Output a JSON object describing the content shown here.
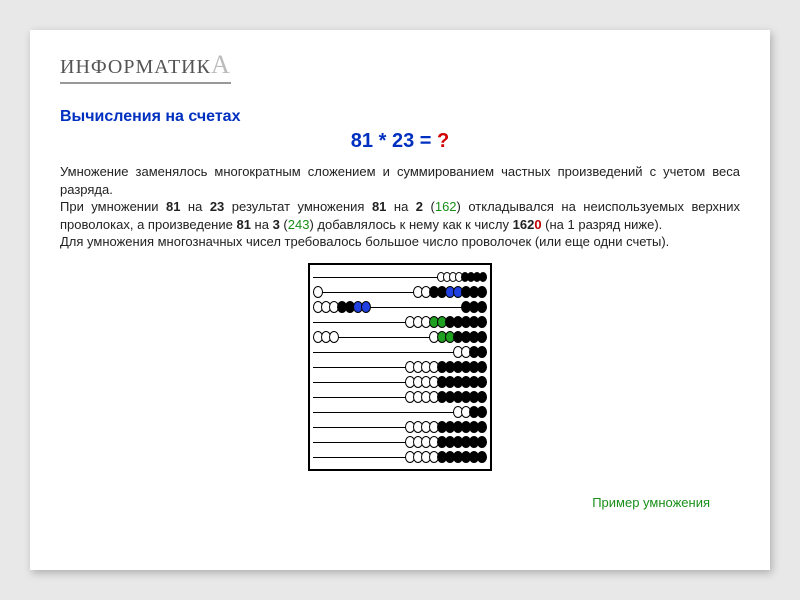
{
  "brand": {
    "text": "ИНФОРМАТИК",
    "suffix": "А"
  },
  "title": "Вычисления на счетах",
  "equation": {
    "lhs": "81 * 23 = ",
    "rhs": "?"
  },
  "paragraphs": {
    "p1": "Умножение заменялось многократным сложением и суммированием частных произведений с учетом веса разряда.",
    "p2a": "При умножении ",
    "p2b": "81",
    "p2c": " на ",
    "p2d": "23",
    "p2e": " результат умножения ",
    "p2f": "81",
    "p2g": " на ",
    "p2h": "2",
    "p2i": " (",
    "p2j": "162",
    "p2k": ") откладывался на неиспользуемых верхних проволоках, а произведение ",
    "p2l": "81",
    "p2m": " на ",
    "p2n": "3",
    "p2o": " (",
    "p2p": "243",
    "p2q": ") добавлялось к нему как к числу ",
    "p2r": "162",
    "p2s": "0",
    "p2t": " (на 1 разряд ниже).",
    "p3": "Для умножения многозначных чисел требовалось большое число проволочек (или еще одни счеты)."
  },
  "caption": "Пример умножения",
  "abacus": {
    "border_color": "#000000",
    "background_color": "#ffffff",
    "bead_white": "#ffffff",
    "bead_black": "#000000",
    "bead_blue": "#2040e0",
    "bead_green": "#20a020",
    "wires": [
      {
        "left": [],
        "right": [
          "w",
          "w",
          "w",
          "w",
          "b",
          "b",
          "b",
          "b"
        ],
        "small": true
      },
      {
        "left": [
          "w"
        ],
        "right": [
          "w",
          "w",
          "b",
          "b",
          "bl",
          "bl",
          "b",
          "b",
          "b"
        ]
      },
      {
        "left": [
          "w",
          "w",
          "w",
          "b",
          "b",
          "bl",
          "bl"
        ],
        "right": [
          "b",
          "b",
          "b"
        ]
      },
      {
        "left": [],
        "right": [
          "w",
          "w",
          "w",
          "g",
          "g",
          "b",
          "b",
          "b",
          "b",
          "b"
        ]
      },
      {
        "left": [
          "w",
          "w",
          "w"
        ],
        "right": [
          "w",
          "g",
          "g",
          "b",
          "b",
          "b",
          "b"
        ]
      },
      {
        "left": [],
        "right": [
          "w",
          "w",
          "b",
          "b"
        ]
      },
      {
        "left": [],
        "right": [
          "w",
          "w",
          "w",
          "w",
          "b",
          "b",
          "b",
          "b",
          "b",
          "b"
        ]
      },
      {
        "left": [],
        "right": [
          "w",
          "w",
          "w",
          "w",
          "b",
          "b",
          "b",
          "b",
          "b",
          "b"
        ]
      },
      {
        "left": [],
        "right": [
          "w",
          "w",
          "w",
          "w",
          "b",
          "b",
          "b",
          "b",
          "b",
          "b"
        ]
      },
      {
        "left": [],
        "right": [
          "w",
          "w",
          "b",
          "b"
        ]
      },
      {
        "left": [],
        "right": [
          "w",
          "w",
          "w",
          "w",
          "b",
          "b",
          "b",
          "b",
          "b",
          "b"
        ]
      },
      {
        "left": [],
        "right": [
          "w",
          "w",
          "w",
          "w",
          "b",
          "b",
          "b",
          "b",
          "b",
          "b"
        ]
      },
      {
        "left": [],
        "right": [
          "w",
          "w",
          "w",
          "w",
          "b",
          "b",
          "b",
          "b",
          "b",
          "b"
        ]
      }
    ]
  },
  "colors": {
    "page_bg": "#e8e8e8",
    "slide_bg": "#ffffff",
    "title_color": "#0030c0",
    "text_color": "#222222",
    "green": "#1a8f1a",
    "red": "#c00000"
  }
}
